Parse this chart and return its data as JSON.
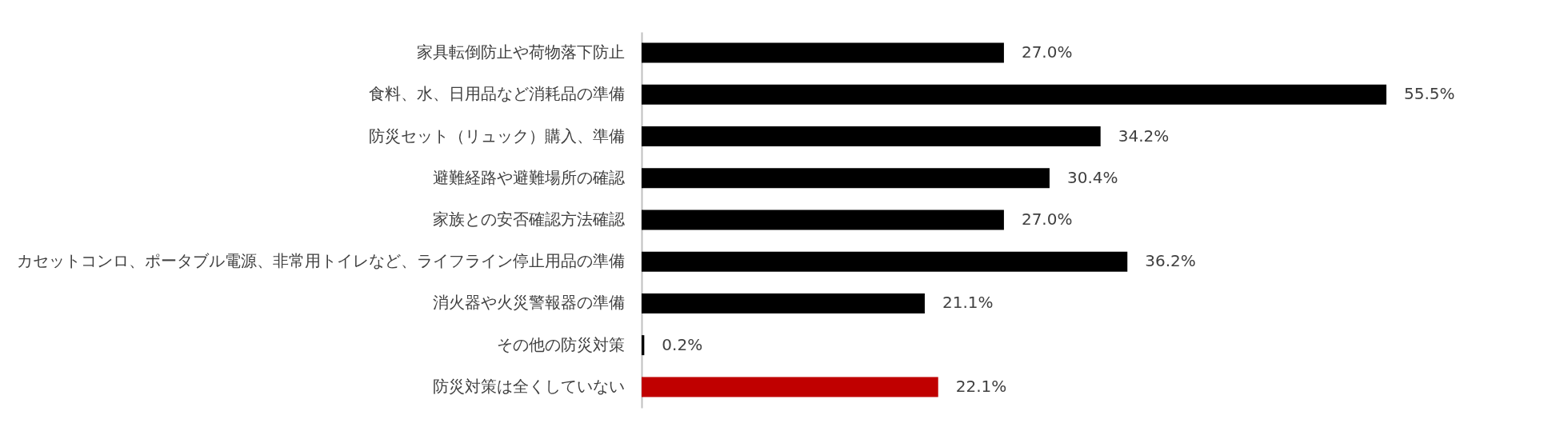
{
  "chart_data": {
    "type": "bar",
    "orientation": "horizontal",
    "categories": [
      "家具転倒防止や荷物落下防止",
      "食料、水、日用品など消耗品の準備",
      "防災セット（リュック）購入、準備",
      "避難経路や避難場所の確認",
      "家族との安否確認方法確認",
      "カセットコンロ、ポータブル電源、非常用トイレなど、ライフライン停止用品の準備",
      "消火器や火災警報器の準備",
      "その他の防災対策",
      "防災対策は全くしていない"
    ],
    "values": [
      27.0,
      55.5,
      34.2,
      30.4,
      27.0,
      36.2,
      21.1,
      0.2,
      22.1
    ],
    "colors": [
      "#000000",
      "#000000",
      "#000000",
      "#000000",
      "#000000",
      "#000000",
      "#000000",
      "#000000",
      "#c00000"
    ],
    "value_labels": [
      "27.0%",
      "55.5%",
      "34.2%",
      "30.4%",
      "27.0%",
      "36.2%",
      "21.1%",
      "0.2%",
      "22.1%"
    ]
  }
}
